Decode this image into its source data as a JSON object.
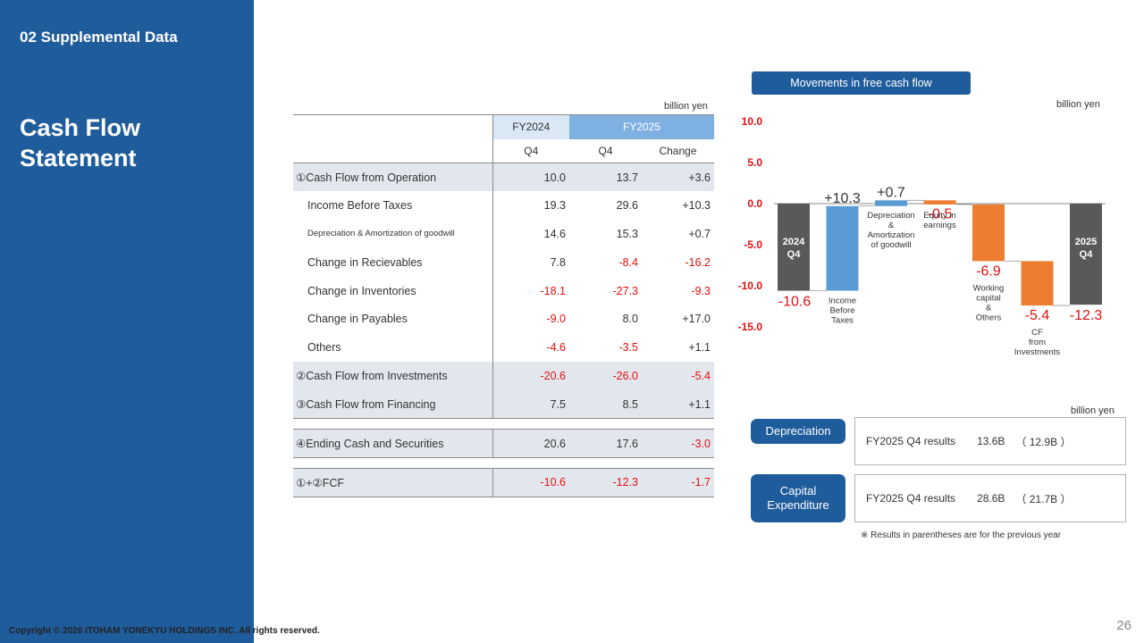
{
  "sidebar": {
    "section_label": "02 Supplemental Data",
    "title_line1": "Cash Flow",
    "title_line2": "Statement",
    "color": "#1f5c9c"
  },
  "footer": {
    "copyright": "Copyright © 2026 ITOHAM YONEKYU HOLDINGS INC. All rights reserved.",
    "page_number": "26"
  },
  "table": {
    "unit": "billion yen",
    "headers": {
      "fy2024": "FY2024",
      "fy2025": "FY2025",
      "q4": "Q4",
      "q4b": "Q4",
      "change": "Change"
    },
    "rows": [
      {
        "label": "①Cash Flow from Operation",
        "fy2024": "10.0",
        "fy2025": "13.7",
        "change": "+3.6"
      },
      {
        "label": "Income Before Taxes",
        "fy2024": "19.3",
        "fy2025": "29.6",
        "change": "+10.3"
      },
      {
        "label": "Depreciation & Amortization of goodwill",
        "fy2024": "14.6",
        "fy2025": "15.3",
        "change": "+0.7"
      },
      {
        "label": "Change in Recievables",
        "fy2024": "7.8",
        "fy2025": "-8.4",
        "change": "-16.2"
      },
      {
        "label": "Change in Inventories",
        "fy2024": "-18.1",
        "fy2025": "-27.3",
        "change": "-9.3"
      },
      {
        "label": "Change in Payables",
        "fy2024": "-9.0",
        "fy2025": "8.0",
        "change": "+17.0"
      },
      {
        "label": "Others",
        "fy2024": "-4.6",
        "fy2025": "-3.5",
        "change": "+1.1"
      },
      {
        "label": "②Cash Flow from Investments",
        "fy2024": "-20.6",
        "fy2025": "-26.0",
        "change": "-5.4"
      },
      {
        "label": "③Cash Flow from Financing",
        "fy2024": "7.5",
        "fy2025": "8.5",
        "change": "+1.1"
      },
      {
        "label": "④Ending Cash and Securities",
        "fy2024": "20.6",
        "fy2025": "17.6",
        "change": "-3.0"
      },
      {
        "label": "①+②FCF",
        "fy2024": "-10.6",
        "fy2025": "-12.3",
        "change": "-1.7"
      }
    ]
  },
  "fcf": {
    "title": "Movements in free cash flow",
    "unit": "billion yen"
  },
  "chart_data": {
    "type": "bar",
    "subtype": "waterfall",
    "title": "Movements in free cash flow",
    "ylabel": "billion yen",
    "ylim": [
      -15,
      10
    ],
    "yticks": [
      10.0,
      5.0,
      0.0,
      -5.0,
      -10.0,
      -15.0
    ],
    "ytick_labels": [
      "10.0",
      "5.0",
      "0.0",
      "-5.0",
      "-10.0",
      "-15.0"
    ],
    "categories": [
      "2024 Q4",
      "Income Before Taxes",
      "Depreciation & Amortization of goodwill",
      "Equity in earnings",
      "Working capital & Others",
      "CF from Investments",
      "2025 Q4"
    ],
    "values": [
      -10.6,
      10.3,
      0.7,
      -0.5,
      -6.9,
      -5.4,
      -12.3
    ],
    "value_labels": [
      "-10.6",
      "+10.3",
      "+0.7",
      "-0.5",
      "-6.9",
      "-5.4",
      "-12.3"
    ],
    "bar_labels": [
      "2024\nQ4",
      "",
      "",
      "",
      "",
      "",
      "2025\nQ4"
    ],
    "category_labels": [
      "",
      "Income\nBefore\nTaxes",
      "Depreciation\n&\nAmortization\nof goodwill",
      "Equity in\nearnings",
      "Working\ncapital\n&\nOthers",
      "CF\nfrom\nInvestments",
      ""
    ],
    "kinds": [
      "total",
      "delta",
      "delta",
      "delta",
      "delta",
      "delta",
      "total"
    ],
    "colors": {
      "total": "#595959",
      "increase": "#5b9bd5",
      "decrease": "#ed7d31",
      "negative_text": "#e01010",
      "axis_text": "#e01010"
    },
    "grid": false
  },
  "depreciation": {
    "label": "Depreciation",
    "unit": "billion yen",
    "period": "FY2025 Q4 results",
    "value": "13.6B",
    "previous": "（ 12.9B ）"
  },
  "capex": {
    "label_line1": "Capital",
    "label_line2": "Expenditure",
    "period": "FY2025 Q4 results",
    "value": "28.6B",
    "previous": "（ 21.7B ）"
  },
  "note": "※ Results in parentheses are for the previous year"
}
